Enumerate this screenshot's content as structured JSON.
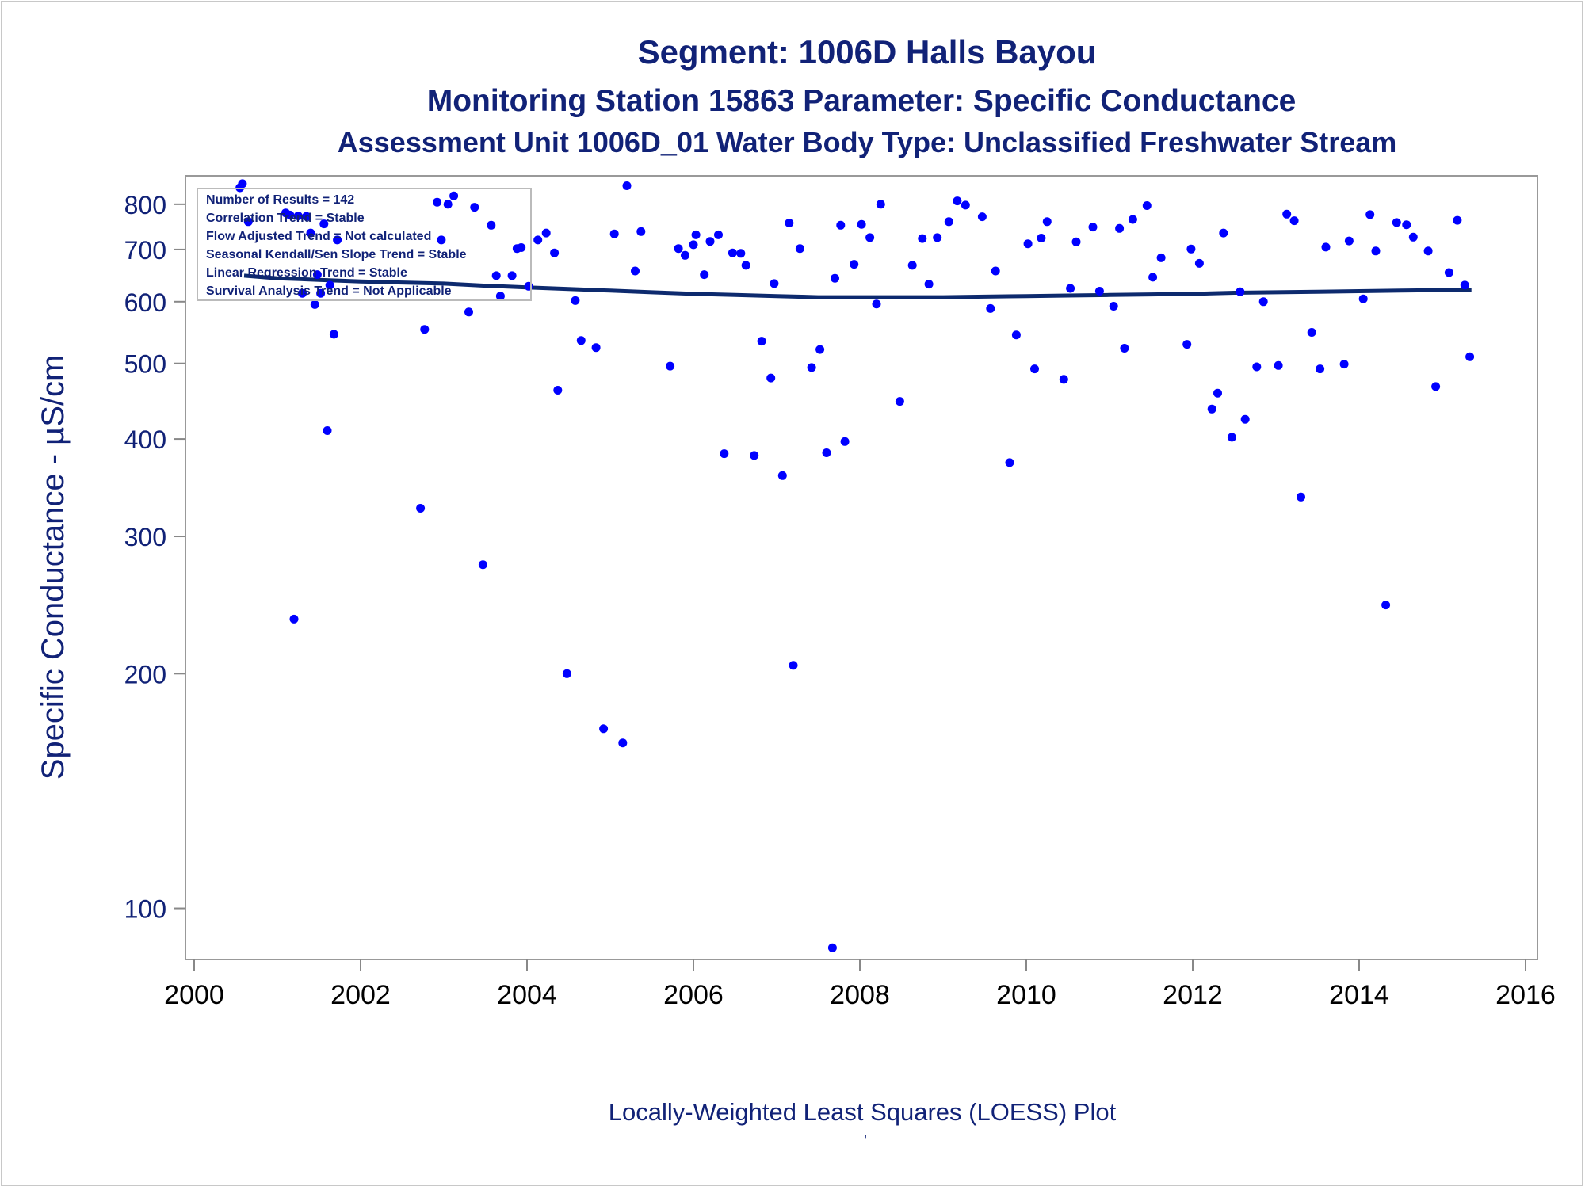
{
  "titles": {
    "line1": "Segment: 1006D  Halls Bayou",
    "line2": "Monitoring Station 15863 Parameter: Specific Conductance",
    "line3": "Assessment Unit 1006D_01   Water Body Type: Unclassified Freshwater Stream"
  },
  "stats_box": {
    "lines": [
      "Number of Results = 142",
      "Correlation Trend = Stable",
      "Flow Adjusted Trend = Not calculated",
      "Seasonal Kendall/Sen Slope Trend = Stable",
      "Linear Regression Trend = Stable",
      "Survival Analysis Trend = Not Applicable"
    ]
  },
  "footnote": {
    "text": "Locally-Weighted Least Squares (LOESS) Plot",
    "mark": "'"
  },
  "colors": {
    "text": "#112277",
    "points": "#0000ff",
    "trend_line": "#0d2a6e",
    "axis": "#888888",
    "tick_labels": "#112277",
    "x_tick_labels": "#000000"
  },
  "chart_data": {
    "type": "scatter",
    "xlabel": "",
    "ylabel": "Specific Conductance -  µS/cm",
    "x_scale": "linear",
    "y_scale": "log",
    "xlim": [
      2000,
      2016
    ],
    "ylim": [
      86,
      870
    ],
    "x_ticks": [
      2000,
      2002,
      2004,
      2006,
      2008,
      2010,
      2012,
      2014,
      2016
    ],
    "y_ticks": [
      100,
      200,
      300,
      400,
      500,
      600,
      700,
      800
    ],
    "grid": false,
    "points": [
      [
        2000.55,
        840
      ],
      [
        2000.58,
        850
      ],
      [
        2000.65,
        760
      ],
      [
        2001.1,
        780
      ],
      [
        2001.15,
        775
      ],
      [
        2001.2,
        235
      ],
      [
        2001.25,
        773
      ],
      [
        2001.3,
        615
      ],
      [
        2001.35,
        772
      ],
      [
        2001.4,
        735
      ],
      [
        2001.45,
        595
      ],
      [
        2001.48,
        650
      ],
      [
        2001.52,
        615
      ],
      [
        2001.56,
        755
      ],
      [
        2001.6,
        410
      ],
      [
        2001.63,
        630
      ],
      [
        2001.68,
        545
      ],
      [
        2001.72,
        720
      ],
      [
        2002.72,
        326
      ],
      [
        2002.77,
        553
      ],
      [
        2002.92,
        805
      ],
      [
        2002.97,
        720
      ],
      [
        2003.05,
        800
      ],
      [
        2003.12,
        820
      ],
      [
        2003.3,
        582
      ],
      [
        2003.37,
        793
      ],
      [
        2003.47,
        276
      ],
      [
        2003.57,
        752
      ],
      [
        2003.63,
        648
      ],
      [
        2003.68,
        610
      ],
      [
        2003.82,
        648
      ],
      [
        2003.88,
        702
      ],
      [
        2003.93,
        704
      ],
      [
        2004.02,
        628
      ],
      [
        2004.13,
        720
      ],
      [
        2004.23,
        735
      ],
      [
        2004.33,
        693
      ],
      [
        2004.37,
        462
      ],
      [
        2004.48,
        200
      ],
      [
        2004.58,
        602
      ],
      [
        2004.65,
        535
      ],
      [
        2004.83,
        524
      ],
      [
        2004.92,
        170
      ],
      [
        2005.05,
        733
      ],
      [
        2005.15,
        163
      ],
      [
        2005.2,
        845
      ],
      [
        2005.3,
        657
      ],
      [
        2005.37,
        738
      ],
      [
        2005.72,
        496
      ],
      [
        2005.82,
        702
      ],
      [
        2005.9,
        688
      ],
      [
        2006.0,
        710
      ],
      [
        2006.03,
        731
      ],
      [
        2006.13,
        650
      ],
      [
        2006.2,
        717
      ],
      [
        2006.3,
        731
      ],
      [
        2006.37,
        383
      ],
      [
        2006.47,
        693
      ],
      [
        2006.57,
        692
      ],
      [
        2006.63,
        668
      ],
      [
        2006.73,
        381
      ],
      [
        2006.82,
        534
      ],
      [
        2006.93,
        479
      ],
      [
        2006.97,
        633
      ],
      [
        2007.07,
        359
      ],
      [
        2007.15,
        757
      ],
      [
        2007.2,
        205
      ],
      [
        2007.28,
        702
      ],
      [
        2007.42,
        494
      ],
      [
        2007.52,
        521
      ],
      [
        2007.6,
        384
      ],
      [
        2007.67,
        89
      ],
      [
        2007.7,
        643
      ],
      [
        2007.77,
        752
      ],
      [
        2007.82,
        397
      ],
      [
        2007.93,
        670
      ],
      [
        2008.02,
        754
      ],
      [
        2008.12,
        725
      ],
      [
        2008.2,
        596
      ],
      [
        2008.25,
        800
      ],
      [
        2008.48,
        447
      ],
      [
        2008.63,
        668
      ],
      [
        2008.75,
        723
      ],
      [
        2008.83,
        632
      ],
      [
        2008.93,
        725
      ],
      [
        2009.07,
        760
      ],
      [
        2009.17,
        808
      ],
      [
        2009.27,
        798
      ],
      [
        2009.47,
        771
      ],
      [
        2009.57,
        588
      ],
      [
        2009.63,
        657
      ],
      [
        2009.8,
        373
      ],
      [
        2009.88,
        544
      ],
      [
        2010.02,
        712
      ],
      [
        2010.1,
        492
      ],
      [
        2010.18,
        724
      ],
      [
        2010.25,
        760
      ],
      [
        2010.45,
        477
      ],
      [
        2010.53,
        624
      ],
      [
        2010.6,
        716
      ],
      [
        2010.8,
        748
      ],
      [
        2010.88,
        619
      ],
      [
        2011.05,
        592
      ],
      [
        2011.12,
        745
      ],
      [
        2011.18,
        523
      ],
      [
        2011.28,
        765
      ],
      [
        2011.45,
        797
      ],
      [
        2011.52,
        645
      ],
      [
        2011.62,
        683
      ],
      [
        2011.93,
        529
      ],
      [
        2011.98,
        701
      ],
      [
        2012.08,
        672
      ],
      [
        2012.23,
        437
      ],
      [
        2012.3,
        458
      ],
      [
        2012.37,
        735
      ],
      [
        2012.47,
        402
      ],
      [
        2012.57,
        618
      ],
      [
        2012.63,
        424
      ],
      [
        2012.77,
        495
      ],
      [
        2012.85,
        600
      ],
      [
        2013.03,
        497
      ],
      [
        2013.13,
        777
      ],
      [
        2013.22,
        762
      ],
      [
        2013.3,
        337
      ],
      [
        2013.43,
        548
      ],
      [
        2013.53,
        492
      ],
      [
        2013.6,
        705
      ],
      [
        2013.82,
        499
      ],
      [
        2013.88,
        718
      ],
      [
        2014.05,
        605
      ],
      [
        2014.13,
        776
      ],
      [
        2014.2,
        697
      ],
      [
        2014.32,
        245
      ],
      [
        2014.45,
        758
      ],
      [
        2014.57,
        753
      ],
      [
        2014.65,
        726
      ],
      [
        2014.83,
        697
      ],
      [
        2014.92,
        467
      ],
      [
        2015.08,
        654
      ],
      [
        2015.18,
        763
      ],
      [
        2015.27,
        630
      ],
      [
        2015.33,
        510
      ]
    ],
    "loess_line": [
      [
        2000.6,
        648
      ],
      [
        2001.0,
        643
      ],
      [
        2001.5,
        640
      ],
      [
        2002.0,
        637
      ],
      [
        2002.5,
        635
      ],
      [
        2003.0,
        633
      ],
      [
        2003.5,
        629
      ],
      [
        2004.0,
        626
      ],
      [
        2004.5,
        623
      ],
      [
        2005.0,
        620
      ],
      [
        2005.5,
        617
      ],
      [
        2006.0,
        614
      ],
      [
        2006.5,
        612
      ],
      [
        2007.0,
        610
      ],
      [
        2007.5,
        608
      ],
      [
        2008.0,
        608
      ],
      [
        2008.5,
        608
      ],
      [
        2009.0,
        608
      ],
      [
        2009.5,
        609
      ],
      [
        2010.0,
        610
      ],
      [
        2010.5,
        611
      ],
      [
        2011.0,
        612
      ],
      [
        2011.5,
        613
      ],
      [
        2012.0,
        614
      ],
      [
        2012.5,
        616
      ],
      [
        2013.0,
        617
      ],
      [
        2013.5,
        618
      ],
      [
        2014.0,
        619
      ],
      [
        2014.5,
        620
      ],
      [
        2015.0,
        621
      ],
      [
        2015.35,
        621
      ]
    ]
  }
}
